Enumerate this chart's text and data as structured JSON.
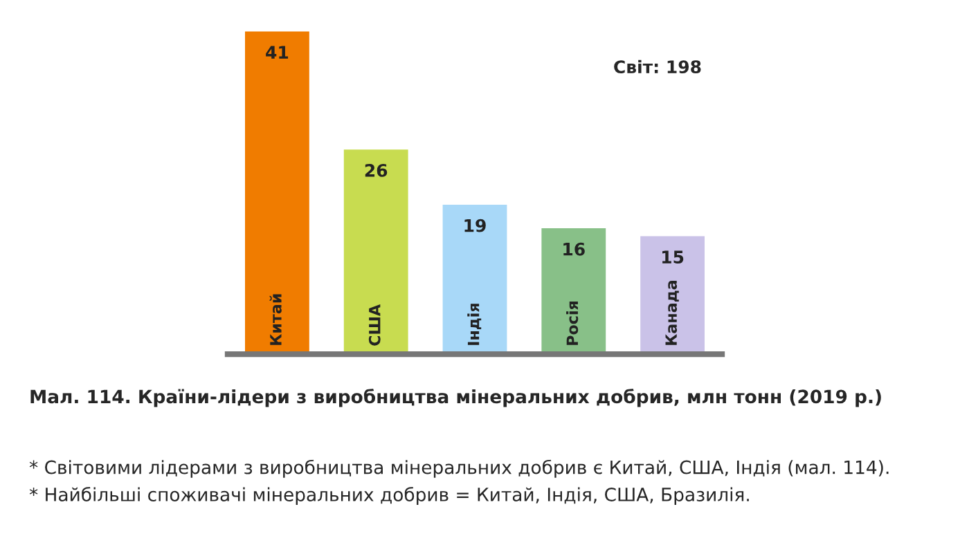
{
  "chart_data": {
    "type": "bar",
    "title": "Мал. 114. Країни-лідери з виробництва мінеральних добрив, млн тонн (2019 р.)",
    "categories": [
      "Китай",
      "США",
      "Індія",
      "Росія",
      "Канада"
    ],
    "values": [
      41,
      26,
      19,
      16,
      15
    ],
    "colors": [
      "#f07c00",
      "#c8dc50",
      "#a8d8f8",
      "#88c088",
      "#cac2e8"
    ],
    "data_labels": true,
    "annotations": [
      "Світ: 198",
      "* Світовими лідерами з виробництва мінеральних добрив є Китай, США, Індія (мал. 114).",
      "* Найбільші споживачі мінеральних добрив = Китай, Індія, США, Бразилія."
    ],
    "stacked": false
  }
}
